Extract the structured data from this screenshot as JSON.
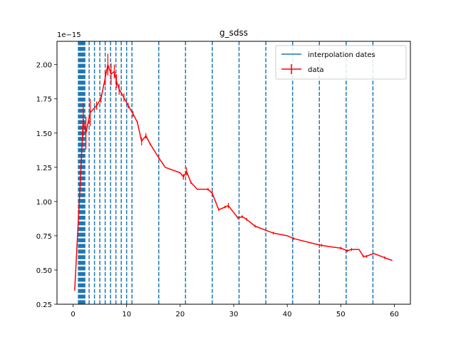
{
  "chart_data": {
    "type": "line",
    "title": "g_sdss",
    "xlabel": "",
    "ylabel": "",
    "y_offset_label": "1e−15",
    "xlim": [
      -3,
      63
    ],
    "ylim": [
      0.25,
      2.17
    ],
    "x_ticks": [
      0,
      10,
      20,
      30,
      40,
      50,
      60
    ],
    "y_ticks": [
      0.25,
      0.5,
      0.75,
      1.0,
      1.25,
      1.5,
      1.75,
      2.0
    ],
    "y_tick_labels": [
      "0.25",
      "0.50",
      "0.75",
      "1.00",
      "1.25",
      "1.50",
      "1.75",
      "2.00"
    ],
    "grid": false,
    "legend_position": "top-right",
    "series": [
      {
        "name": "data",
        "kind": "errorbar-line",
        "color": "#ff0000",
        "x": [
          0.3,
          1.3,
          1.9,
          2.4,
          3.2,
          4.4,
          5.2,
          6.0,
          6.5,
          7.1,
          7.7,
          8.1,
          8.6,
          9.5,
          10.3,
          11.2,
          12.0,
          12.8,
          13.6,
          14.4,
          16.0,
          17.2,
          20.0,
          20.6,
          21.2,
          22.0,
          23.2,
          25.2,
          26.0,
          27.2,
          28.4,
          29.0,
          30.8,
          31.6,
          32.4,
          34.0,
          36.0,
          37.4,
          40.0,
          41.2,
          45.2,
          46.4,
          48.0,
          50.0,
          51.2,
          52.0,
          53.4,
          54.2,
          54.8,
          55.4,
          56.2,
          58.2,
          59.6
        ],
        "y": [
          0.35,
          1.1,
          1.6,
          1.5,
          1.65,
          1.7,
          1.75,
          1.9,
          2.0,
          1.93,
          1.95,
          1.88,
          1.82,
          1.76,
          1.7,
          1.64,
          1.58,
          1.44,
          1.48,
          1.42,
          1.32,
          1.25,
          1.21,
          1.18,
          1.22,
          1.14,
          1.09,
          1.09,
          1.06,
          0.94,
          0.96,
          0.97,
          0.88,
          0.89,
          0.87,
          0.82,
          0.79,
          0.77,
          0.75,
          0.73,
          0.69,
          0.68,
          0.67,
          0.66,
          0.64,
          0.65,
          0.65,
          0.6,
          0.6,
          0.61,
          0.62,
          0.59,
          0.57
        ],
        "yerr": [
          0.0,
          0.0,
          0.12,
          0.12,
          0.1,
          0.03,
          0.03,
          0.05,
          0.08,
          0.08,
          0.05,
          0.05,
          0.04,
          0.03,
          0.02,
          0.02,
          0.01,
          0.03,
          0.02,
          0.01,
          0.01,
          0.0,
          0.0,
          0.02,
          0.03,
          0.01,
          0.0,
          0.01,
          0.02,
          0.01,
          0.01,
          0.02,
          0.01,
          0.01,
          0.01,
          0.01,
          0.0,
          0.01,
          0.0,
          0.01,
          0.0,
          0.01,
          0.0,
          0.01,
          0.01,
          0.01,
          0.0,
          0.01,
          0.01,
          0.0,
          0.0,
          0.01,
          0.0
        ]
      },
      {
        "name": "interpolation dates",
        "kind": "vlines",
        "color": "#1f77b4",
        "x": [
          1.0,
          1.15,
          1.3,
          1.45,
          1.6,
          1.75,
          1.9,
          2.05,
          2.2,
          3.0,
          4.0,
          5.0,
          6.0,
          7.0,
          8.0,
          9.0,
          10.0,
          11.0,
          16.0,
          21.0,
          26.0,
          31.0,
          36.0,
          41.0,
          46.0,
          51.0,
          56.0
        ]
      }
    ]
  }
}
